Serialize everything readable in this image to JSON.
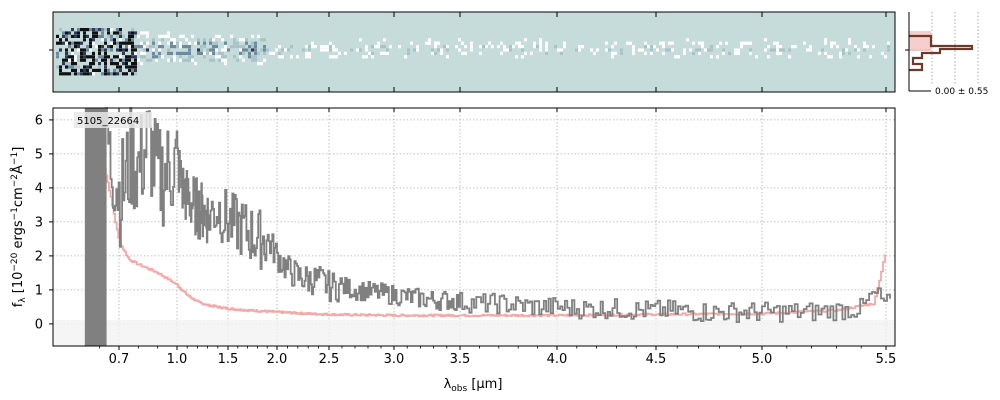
{
  "chart_data": {
    "type": "line",
    "source_label": "5105_22664",
    "xlabel_main": "λ",
    "xlabel_sub": "obs",
    "xlabel_unit": " [μm]",
    "ylabel_parts": [
      "f",
      "λ",
      " [10",
      "−20",
      " ergs",
      "−1",
      "cm",
      "−2",
      "Å",
      "−1",
      "]"
    ],
    "xlim": [
      0.5,
      5.55
    ],
    "ylim": [
      -0.65,
      6.35
    ],
    "x_scale": "warped (spectral resolution)",
    "x_ticks": [
      0.7,
      1.0,
      1.5,
      2.0,
      2.5,
      3.0,
      3.5,
      4.0,
      4.5,
      5.0,
      5.5
    ],
    "x_tick_labels": [
      "0.7",
      "1.0",
      "1.5",
      "2.0",
      "2.5",
      "3.0",
      "3.5",
      "4.0",
      "4.5",
      "5.0",
      "5.5"
    ],
    "y_ticks": [
      0,
      1,
      2,
      3,
      4,
      5,
      6
    ],
    "grid": true,
    "series": [
      {
        "color": "#808080",
        "role": "observed spectrum",
        "x": [
          0.55,
          0.6,
          0.63,
          0.65,
          0.68,
          0.7,
          0.73,
          0.76,
          0.8,
          0.85,
          0.9,
          0.95,
          1.0,
          1.05,
          1.1,
          1.2,
          1.3,
          1.4,
          1.5,
          1.6,
          1.7,
          1.8,
          1.9,
          2.0,
          2.1,
          2.2,
          2.3,
          2.4,
          2.5,
          2.6,
          2.7,
          2.8,
          2.9,
          3.0,
          3.1,
          3.2,
          3.3,
          3.4,
          3.5,
          3.6,
          3.7,
          3.8,
          3.9,
          4.0,
          4.1,
          4.2,
          4.3,
          4.4,
          4.5,
          4.6,
          4.7,
          4.8,
          4.9,
          5.0,
          5.1,
          5.2,
          5.3,
          5.4,
          5.45,
          5.5
        ],
        "y": [
          3.5,
          5.2,
          6.3,
          4.8,
          4.5,
          3.8,
          4.2,
          4.9,
          4.6,
          5.4,
          4.3,
          4.5,
          4.8,
          4.0,
          3.7,
          3.4,
          3.2,
          3.4,
          3.0,
          2.9,
          2.7,
          2.5,
          2.5,
          2.0,
          1.6,
          1.4,
          1.3,
          1.3,
          1.1,
          1.1,
          1.0,
          0.95,
          0.9,
          0.85,
          0.8,
          0.75,
          0.7,
          0.7,
          0.65,
          0.6,
          0.6,
          0.55,
          0.5,
          0.5,
          0.45,
          0.45,
          0.45,
          0.4,
          0.4,
          0.4,
          0.35,
          0.35,
          0.35,
          0.35,
          0.35,
          0.35,
          0.4,
          0.45,
          0.9,
          0.6
        ]
      },
      {
        "color": "#f4a8a8",
        "role": "model / contamination",
        "x": [
          0.6,
          0.65,
          0.7,
          0.75,
          0.8,
          0.9,
          1.0,
          1.1,
          1.2,
          1.3,
          1.5,
          1.7,
          2.0,
          2.3,
          2.6,
          3.0,
          3.5,
          4.0,
          4.5,
          5.0,
          5.3,
          5.45,
          5.5
        ],
        "y": [
          5.2,
          3.9,
          2.4,
          1.9,
          1.75,
          1.5,
          1.15,
          0.85,
          0.65,
          0.55,
          0.45,
          0.4,
          0.35,
          0.3,
          0.27,
          0.25,
          0.25,
          0.25,
          0.28,
          0.3,
          0.4,
          0.6,
          2.2
        ]
      }
    ],
    "side_panel": {
      "label": "0.00 ± 0.55"
    }
  }
}
